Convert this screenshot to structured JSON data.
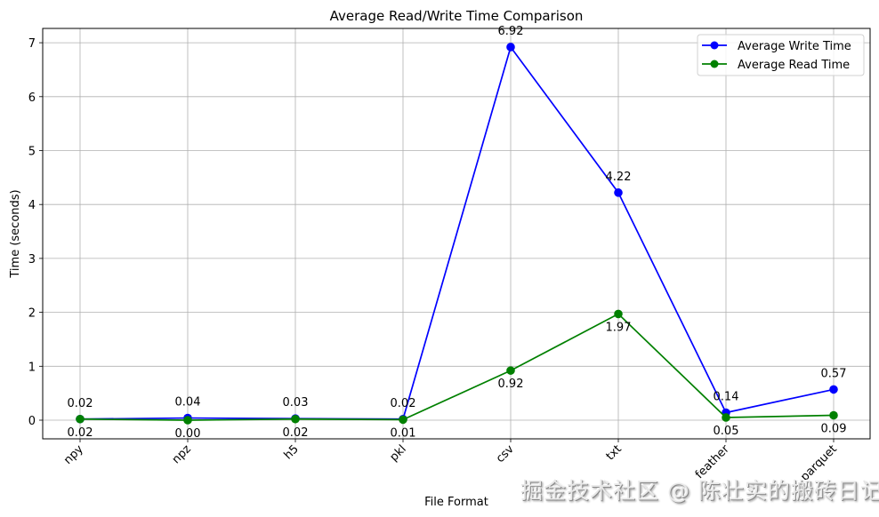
{
  "chart_data": {
    "type": "line",
    "title": "Average Read/Write Time Comparison",
    "xlabel": "File Format",
    "ylabel": "Time (seconds)",
    "categories": [
      "npy",
      "npz",
      "h5",
      "pkl",
      "csv",
      "txt",
      "feather",
      "parquet"
    ],
    "series": [
      {
        "name": "Average Write Time",
        "color": "#0000ff",
        "values": [
          0.02,
          0.04,
          0.03,
          0.02,
          6.92,
          4.22,
          0.14,
          0.57
        ]
      },
      {
        "name": "Average Read Time",
        "color": "#008000",
        "values": [
          0.02,
          0.0,
          0.02,
          0.01,
          0.92,
          1.97,
          0.05,
          0.09
        ]
      }
    ],
    "yticks": [
      0,
      1,
      2,
      3,
      4,
      5,
      6,
      7
    ],
    "ylim": [
      -0.35,
      7.25
    ],
    "grid": true,
    "legend_position": "upper right",
    "xtick_rotation": 45
  },
  "watermark": "掘金技术社区 @ 陈壮实的搬砖日记"
}
